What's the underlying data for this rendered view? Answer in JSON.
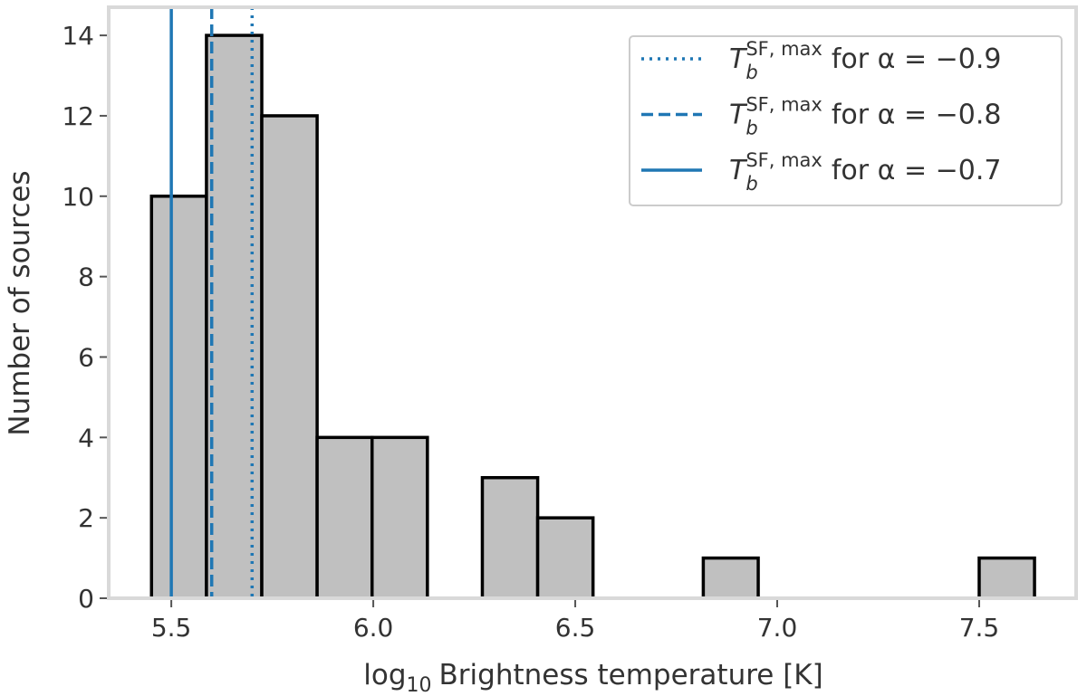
{
  "chart_data": {
    "type": "histogram",
    "xlabel": {
      "main": "log",
      "sub": "10",
      "text": "Brightness temperature [K]"
    },
    "ylabel": "Number of sources",
    "bins": [
      5.451,
      5.587,
      5.724,
      5.861,
      5.997,
      6.134,
      6.27,
      6.407,
      6.544,
      6.68,
      6.817,
      6.953,
      7.09,
      7.227,
      7.363,
      7.5,
      7.637
    ],
    "values": [
      10,
      14,
      12,
      4,
      4,
      0,
      3,
      2,
      0,
      0,
      1,
      0,
      0,
      0,
      0,
      1
    ],
    "color": "#c0c0c0",
    "edgecolor": "#000000",
    "xlim": [
      5.345,
      7.74
    ],
    "ylim": [
      0,
      14.7
    ],
    "xticks": [
      5.5,
      {
        "value": 6,
        "label": "6.0"
      },
      6.5,
      {
        "value": 7,
        "label": "7.0"
      },
      7.5
    ],
    "yticks": [
      0,
      2,
      4,
      6,
      8,
      10,
      12,
      14
    ],
    "vlines": [
      {
        "x": 5.7,
        "style": "dotted",
        "color": "#1f77b4",
        "label": {
          "main": "T",
          "sub": "b",
          "sup": "SF, max",
          "text": "for α = −0.9"
        }
      },
      {
        "x": 5.6,
        "style": "dashed",
        "color": "#1f77b4",
        "label": {
          "main": "T",
          "sub": "b",
          "sup": "SF, max",
          "text": "for α = −0.8"
        }
      },
      {
        "x": 5.5,
        "style": "solid",
        "color": "#1f77b4",
        "label": {
          "main": "T",
          "sub": "b",
          "sup": "SF, max",
          "text": "for α = −0.7"
        }
      }
    ],
    "legend": "upper right"
  }
}
